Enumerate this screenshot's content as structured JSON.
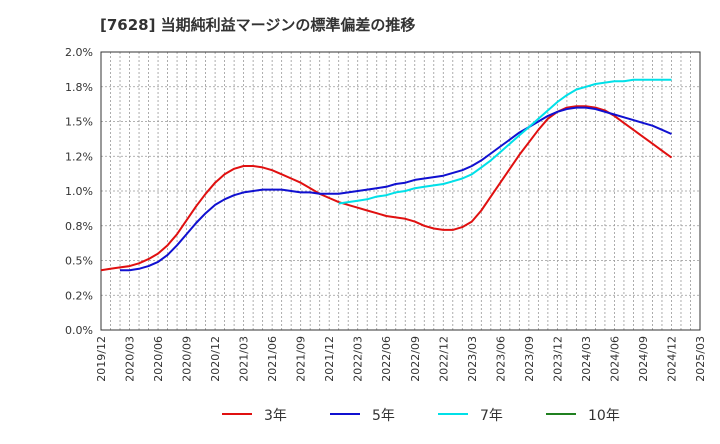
{
  "chart_data": {
    "type": "line",
    "title": "[7628]  当期純利益マージンの標準偏差の推移",
    "xlabel": "",
    "ylabel": "",
    "ylim": [
      0.0,
      2.0
    ],
    "y_ticks": [
      "0.0%",
      "0.2%",
      "0.5%",
      "0.8%",
      "1.0%",
      "1.2%",
      "1.5%",
      "1.8%",
      "2.0%"
    ],
    "x_ticks": [
      "2019/12",
      "2020/03",
      "2020/06",
      "2020/09",
      "2020/12",
      "2021/03",
      "2021/06",
      "2021/09",
      "2021/12",
      "2022/03",
      "2022/06",
      "2022/09",
      "2022/12",
      "2023/03",
      "2023/06",
      "2023/09",
      "2023/12",
      "2024/03",
      "2024/06",
      "2024/09",
      "2024/12",
      "2025/03"
    ],
    "grid": true,
    "legend_position": "bottom",
    "series": [
      {
        "name": "3年",
        "color": "#e01010",
        "x": [
          "2019/12",
          "2020/01",
          "2020/02",
          "2020/03",
          "2020/04",
          "2020/05",
          "2020/06",
          "2020/07",
          "2020/08",
          "2020/09",
          "2020/10",
          "2020/11",
          "2020/12",
          "2021/01",
          "2021/02",
          "2021/03",
          "2021/04",
          "2021/05",
          "2021/06",
          "2021/07",
          "2021/08",
          "2021/09",
          "2021/10",
          "2021/11",
          "2021/12",
          "2022/01",
          "2022/02",
          "2022/03",
          "2022/04",
          "2022/05",
          "2022/06",
          "2022/07",
          "2022/08",
          "2022/09",
          "2022/10",
          "2022/11",
          "2022/12",
          "2023/01",
          "2023/02",
          "2023/03",
          "2023/04",
          "2023/05",
          "2023/06",
          "2023/07",
          "2023/08",
          "2023/09",
          "2023/10",
          "2023/11",
          "2023/12",
          "2024/01",
          "2024/02",
          "2024/03",
          "2024/04",
          "2024/05",
          "2024/06",
          "2024/07",
          "2024/08",
          "2024/09",
          "2024/10",
          "2024/11",
          "2024/12"
        ],
        "values": [
          0.43,
          0.44,
          0.45,
          0.46,
          0.48,
          0.51,
          0.55,
          0.61,
          0.69,
          0.79,
          0.89,
          0.98,
          1.06,
          1.12,
          1.16,
          1.18,
          1.18,
          1.17,
          1.15,
          1.12,
          1.09,
          1.06,
          1.02,
          0.98,
          0.95,
          0.92,
          0.9,
          0.88,
          0.86,
          0.84,
          0.82,
          0.81,
          0.8,
          0.78,
          0.75,
          0.73,
          0.72,
          0.72,
          0.74,
          0.78,
          0.86,
          0.96,
          1.06,
          1.16,
          1.26,
          1.35,
          1.44,
          1.52,
          1.57,
          1.6,
          1.61,
          1.61,
          1.6,
          1.58,
          1.54,
          1.49,
          1.44,
          1.39,
          1.34,
          1.29,
          1.24
        ]
      },
      {
        "name": "5年",
        "color": "#1010d0",
        "x": [
          "2020/02",
          "2020/03",
          "2020/04",
          "2020/05",
          "2020/06",
          "2020/07",
          "2020/08",
          "2020/09",
          "2020/10",
          "2020/11",
          "2020/12",
          "2021/01",
          "2021/02",
          "2021/03",
          "2021/04",
          "2021/05",
          "2021/06",
          "2021/07",
          "2021/08",
          "2021/09",
          "2021/10",
          "2021/11",
          "2021/12",
          "2022/01",
          "2022/02",
          "2022/03",
          "2022/04",
          "2022/05",
          "2022/06",
          "2022/07",
          "2022/08",
          "2022/09",
          "2022/10",
          "2022/11",
          "2022/12",
          "2023/01",
          "2023/02",
          "2023/03",
          "2023/04",
          "2023/05",
          "2023/06",
          "2023/07",
          "2023/08",
          "2023/09",
          "2023/10",
          "2023/11",
          "2023/12",
          "2024/01",
          "2024/02",
          "2024/03",
          "2024/04",
          "2024/05",
          "2024/06",
          "2024/07",
          "2024/08",
          "2024/09",
          "2024/10",
          "2024/11",
          "2024/12"
        ],
        "values": [
          0.43,
          0.43,
          0.44,
          0.46,
          0.49,
          0.54,
          0.61,
          0.69,
          0.77,
          0.84,
          0.9,
          0.94,
          0.97,
          0.99,
          1.0,
          1.01,
          1.01,
          1.01,
          1.0,
          0.99,
          0.99,
          0.98,
          0.98,
          0.98,
          0.99,
          1.0,
          1.01,
          1.02,
          1.03,
          1.05,
          1.06,
          1.08,
          1.09,
          1.1,
          1.11,
          1.13,
          1.15,
          1.18,
          1.22,
          1.27,
          1.32,
          1.37,
          1.42,
          1.46,
          1.5,
          1.54,
          1.57,
          1.59,
          1.6,
          1.6,
          1.59,
          1.57,
          1.55,
          1.53,
          1.51,
          1.49,
          1.47,
          1.44,
          1.41
        ]
      },
      {
        "name": "7年",
        "color": "#00e0e8",
        "x": [
          "2022/01",
          "2022/02",
          "2022/03",
          "2022/04",
          "2022/05",
          "2022/06",
          "2022/07",
          "2022/08",
          "2022/09",
          "2022/10",
          "2022/11",
          "2022/12",
          "2023/01",
          "2023/02",
          "2023/03",
          "2023/04",
          "2023/05",
          "2023/06",
          "2023/07",
          "2023/08",
          "2023/09",
          "2023/10",
          "2023/11",
          "2023/12",
          "2024/01",
          "2024/02",
          "2024/03",
          "2024/04",
          "2024/05",
          "2024/06",
          "2024/07",
          "2024/08",
          "2024/09",
          "2024/10",
          "2024/11",
          "2024/12"
        ],
        "values": [
          0.91,
          0.92,
          0.93,
          0.94,
          0.96,
          0.97,
          0.99,
          1.0,
          1.02,
          1.03,
          1.04,
          1.05,
          1.07,
          1.09,
          1.12,
          1.17,
          1.22,
          1.28,
          1.34,
          1.4,
          1.46,
          1.52,
          1.58,
          1.64,
          1.69,
          1.73,
          1.75,
          1.77,
          1.78,
          1.79,
          1.79,
          1.8,
          1.8,
          1.8,
          1.8,
          1.8
        ]
      },
      {
        "name": "10年",
        "color": "#208020",
        "x": [],
        "values": []
      }
    ]
  }
}
